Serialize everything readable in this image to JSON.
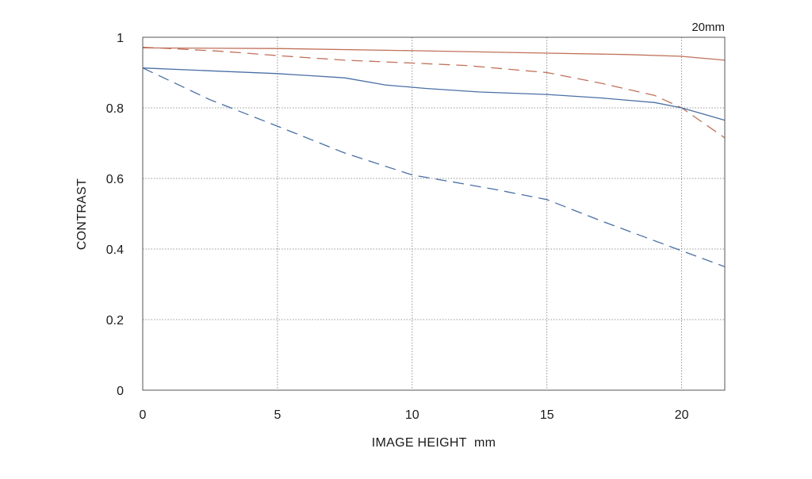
{
  "chart_data": {
    "type": "line",
    "focal_length_label": "20mm",
    "xlabel": "IMAGE HEIGHT  mm",
    "ylabel": "CONTRAST",
    "xlim": [
      0,
      21.6
    ],
    "ylim": [
      0,
      1
    ],
    "x_ticks": [
      0,
      5,
      10,
      15,
      20
    ],
    "y_ticks": [
      0,
      0.2,
      0.4,
      0.6,
      0.8,
      1
    ],
    "x_tick_labels": [
      "0",
      "5",
      "10",
      "15",
      "20"
    ],
    "y_tick_labels": [
      "0",
      "0.2",
      "0.4",
      "0.6",
      "0.8",
      "1"
    ],
    "grid": true,
    "series": [
      {
        "color": "#c0715a",
        "dash": "solid",
        "points": [
          [
            0,
            0.97
          ],
          [
            5,
            0.968
          ],
          [
            10,
            0.962
          ],
          [
            15,
            0.955
          ],
          [
            18,
            0.951
          ],
          [
            20,
            0.946
          ],
          [
            21.6,
            0.935
          ]
        ]
      },
      {
        "color": "#c0715a",
        "dash": "dashed",
        "points": [
          [
            0,
            0.972
          ],
          [
            3,
            0.96
          ],
          [
            5,
            0.948
          ],
          [
            7.5,
            0.935
          ],
          [
            10,
            0.927
          ],
          [
            12,
            0.92
          ],
          [
            15,
            0.9
          ],
          [
            17,
            0.87
          ],
          [
            19,
            0.835
          ],
          [
            20,
            0.8
          ],
          [
            21.6,
            0.715
          ]
        ]
      },
      {
        "color": "#4a6fa5",
        "dash": "solid",
        "points": [
          [
            0,
            0.913
          ],
          [
            2.5,
            0.905
          ],
          [
            5,
            0.897
          ],
          [
            7.5,
            0.885
          ],
          [
            9,
            0.865
          ],
          [
            10.5,
            0.855
          ],
          [
            12.5,
            0.845
          ],
          [
            15,
            0.838
          ],
          [
            17,
            0.828
          ],
          [
            19,
            0.815
          ],
          [
            20,
            0.8
          ],
          [
            21.6,
            0.765
          ]
        ]
      },
      {
        "color": "#4a6fa5",
        "dash": "dashed",
        "points": [
          [
            0,
            0.913
          ],
          [
            2.5,
            0.823
          ],
          [
            5,
            0.748
          ],
          [
            7.5,
            0.672
          ],
          [
            10,
            0.61
          ],
          [
            11.5,
            0.59
          ],
          [
            13,
            0.57
          ],
          [
            15,
            0.54
          ],
          [
            17,
            0.48
          ],
          [
            20,
            0.395
          ],
          [
            21.6,
            0.35
          ]
        ]
      }
    ]
  }
}
